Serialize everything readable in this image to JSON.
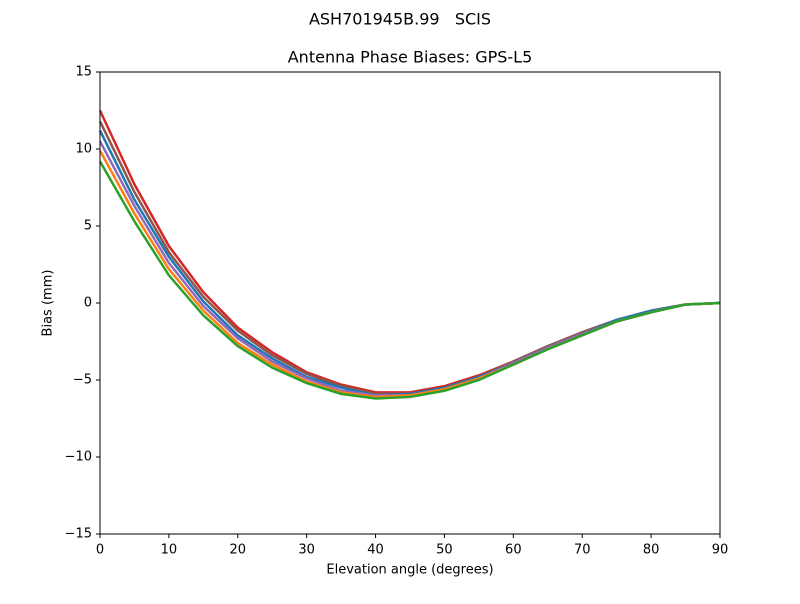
{
  "chart_data": {
    "type": "line",
    "suptitle": "ASH701945B.99   SCIS",
    "title": "Antenna Phase Biases: GPS-L5",
    "xlabel": "Elevation angle (degrees)",
    "ylabel": "Bias (mm)",
    "x": [
      0,
      5,
      10,
      15,
      20,
      25,
      30,
      35,
      40,
      45,
      50,
      55,
      60,
      65,
      70,
      75,
      80,
      85,
      90
    ],
    "xlim": [
      0,
      90
    ],
    "xticks": [
      0,
      10,
      20,
      30,
      40,
      50,
      60,
      70,
      80,
      90
    ],
    "ylim": [
      -15,
      15
    ],
    "yticks": [
      {
        "value": -15,
        "label": "−15"
      },
      {
        "value": -10,
        "label": "−10"
      },
      {
        "value": -5,
        "label": "−5"
      },
      0,
      5,
      10,
      15
    ],
    "series": [
      {
        "color": "#d62728",
        "values": [
          12.5,
          7.7,
          3.7,
          0.7,
          -1.6,
          -3.2,
          -4.5,
          -5.3,
          -5.8,
          -5.8,
          -5.4,
          -4.7,
          -3.8,
          -2.8,
          -1.9,
          -1.1,
          -0.5,
          -0.1,
          0
        ]
      },
      {
        "color": "#8c564b",
        "values": [
          11.8,
          7.2,
          3.3,
          0.4,
          -1.8,
          -3.4,
          -4.6,
          -5.4,
          -5.9,
          -5.9,
          -5.5,
          -4.8,
          -3.8,
          -2.8,
          -1.9,
          -1.1,
          -0.5,
          -0.1,
          0
        ]
      },
      {
        "color": "#1f77b4",
        "values": [
          11.2,
          6.7,
          3.0,
          0.1,
          -2.1,
          -3.6,
          -4.8,
          -5.5,
          -6.0,
          -5.9,
          -5.5,
          -4.8,
          -3.9,
          -2.9,
          -2.0,
          -1.1,
          -0.5,
          -0.1,
          0
        ]
      },
      {
        "color": "#9467bd",
        "values": [
          10.5,
          6.3,
          2.6,
          -0.2,
          -2.3,
          -3.8,
          -4.9,
          -5.7,
          -6.0,
          -6.0,
          -5.6,
          -4.9,
          -3.9,
          -2.9,
          -2.0,
          -1.2,
          -0.6,
          -0.1,
          0
        ]
      },
      {
        "color": "#ff7f0e",
        "values": [
          9.9,
          5.8,
          2.2,
          -0.5,
          -2.6,
          -4.0,
          -5.1,
          -5.8,
          -6.1,
          -6.0,
          -5.6,
          -4.9,
          -4.0,
          -3.0,
          -2.1,
          -1.2,
          -0.6,
          -0.1,
          0
        ]
      },
      {
        "color": "#2ca02c",
        "values": [
          9.2,
          5.3,
          1.8,
          -0.8,
          -2.8,
          -4.2,
          -5.2,
          -5.9,
          -6.2,
          -6.1,
          -5.7,
          -5.0,
          -4.0,
          -3.0,
          -2.1,
          -1.2,
          -0.6,
          -0.1,
          0
        ]
      }
    ]
  }
}
